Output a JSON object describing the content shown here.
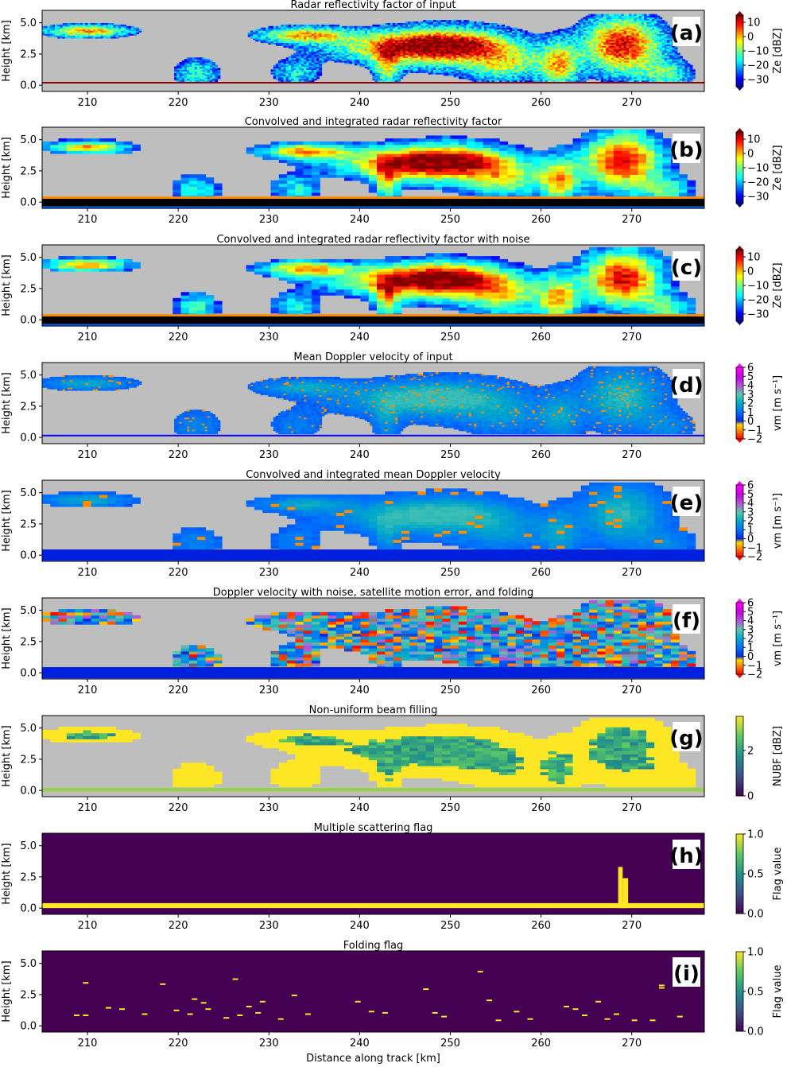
{
  "chart_data": [
    {
      "type": "heatmap",
      "panel": "(a)",
      "title": "Radar reflectivity factor of input",
      "ylabel": "Height [km]",
      "xlim": [
        205,
        278
      ],
      "ylim": [
        -0.5,
        6.0
      ],
      "xticks": [
        "210",
        "220",
        "230",
        "240",
        "250",
        "260",
        "270"
      ],
      "yticks": [
        "0.0",
        "2.5",
        "5.0"
      ],
      "colorbar": {
        "cmap": "jet",
        "label": "Ze [dBZ]",
        "min": -35,
        "max": 15,
        "ticks": [
          "10",
          "0",
          "−10",
          "−20",
          "−30"
        ],
        "tick_values": [
          10,
          0,
          -10,
          -20,
          -30
        ]
      }
    },
    {
      "type": "heatmap",
      "panel": "(b)",
      "title": "Convolved and integrated radar reflectivity factor",
      "ylabel": "Height [km]",
      "xlim": [
        205,
        278
      ],
      "ylim": [
        -0.5,
        6.0
      ],
      "xticks": [
        "210",
        "220",
        "230",
        "240",
        "250",
        "260",
        "270"
      ],
      "yticks": [
        "0.0",
        "2.5",
        "5.0"
      ],
      "colorbar": {
        "cmap": "jet",
        "label": "Ze [dBZ]",
        "min": -35,
        "max": 15,
        "ticks": [
          "10",
          "0",
          "−10",
          "−20",
          "−30"
        ],
        "tick_values": [
          10,
          0,
          -10,
          -20,
          -30
        ]
      }
    },
    {
      "type": "heatmap",
      "panel": "(c)",
      "title": "Convolved and integrated radar reflectivity factor with noise",
      "ylabel": "Height [km]",
      "xlim": [
        205,
        278
      ],
      "ylim": [
        -0.5,
        6.0
      ],
      "xticks": [
        "210",
        "220",
        "230",
        "240",
        "250",
        "260",
        "270"
      ],
      "yticks": [
        "0.0",
        "2.5",
        "5.0"
      ],
      "colorbar": {
        "cmap": "jet",
        "label": "Ze [dBZ]",
        "min": -35,
        "max": 15,
        "ticks": [
          "10",
          "0",
          "−10",
          "−20",
          "−30"
        ],
        "tick_values": [
          10,
          0,
          -10,
          -20,
          -30
        ]
      }
    },
    {
      "type": "heatmap",
      "panel": "(d)",
      "title": "Mean Doppler velocity of input",
      "ylabel": "Height [km]",
      "xlim": [
        205,
        278
      ],
      "ylim": [
        -0.5,
        6.0
      ],
      "xticks": [
        "210",
        "220",
        "230",
        "240",
        "250",
        "260",
        "270"
      ],
      "yticks": [
        "0.0",
        "2.5",
        "5.0"
      ],
      "colorbar": {
        "cmap": "velocity",
        "label": "vm [m s⁻¹]",
        "min": -2,
        "max": 6,
        "ticks": [
          "6",
          "5",
          "4",
          "3",
          "2",
          "1",
          "0",
          "−1",
          "−2"
        ],
        "tick_values": [
          6,
          5,
          4,
          3,
          2,
          1,
          0,
          -1,
          -2
        ]
      }
    },
    {
      "type": "heatmap",
      "panel": "(e)",
      "title": "Convolved and integrated mean Doppler velocity",
      "ylabel": "Height [km]",
      "xlim": [
        205,
        278
      ],
      "ylim": [
        -0.5,
        6.0
      ],
      "xticks": [
        "210",
        "220",
        "230",
        "240",
        "250",
        "260",
        "270"
      ],
      "yticks": [
        "0.0",
        "2.5",
        "5.0"
      ],
      "colorbar": {
        "cmap": "velocity",
        "label": "vm [m s⁻¹]",
        "min": -2,
        "max": 6,
        "ticks": [
          "6",
          "5",
          "4",
          "3",
          "2",
          "1",
          "0",
          "−1",
          "−2"
        ],
        "tick_values": [
          6,
          5,
          4,
          3,
          2,
          1,
          0,
          -1,
          -2
        ]
      }
    },
    {
      "type": "heatmap",
      "panel": "(f)",
      "title": "Doppler velocity with noise, satellite motion error, and folding",
      "ylabel": "Height [km]",
      "xlim": [
        205,
        278
      ],
      "ylim": [
        -0.5,
        6.0
      ],
      "xticks": [
        "210",
        "220",
        "230",
        "240",
        "250",
        "260",
        "270"
      ],
      "yticks": [
        "0.0",
        "2.5",
        "5.0"
      ],
      "colorbar": {
        "cmap": "velocity",
        "label": "vm [m s⁻¹]",
        "min": -2,
        "max": 6,
        "ticks": [
          "6",
          "5",
          "4",
          "3",
          "2",
          "1",
          "0",
          "−1",
          "−2"
        ],
        "tick_values": [
          6,
          5,
          4,
          3,
          2,
          1,
          0,
          -1,
          -2
        ]
      }
    },
    {
      "type": "heatmap",
      "panel": "(g)",
      "title": "Non-uniform beam filling",
      "ylabel": "Height [km]",
      "xlim": [
        205,
        278
      ],
      "ylim": [
        -0.5,
        6.0
      ],
      "xticks": [
        "210",
        "220",
        "230",
        "240",
        "250",
        "260",
        "270"
      ],
      "yticks": [
        "0.0",
        "2.5",
        "5.0"
      ],
      "colorbar": {
        "cmap": "viridis",
        "label": "NUBF [dBZ]",
        "min": 0,
        "max": 3.5,
        "ticks": [
          "2",
          "0"
        ],
        "tick_values": [
          2,
          0
        ]
      }
    },
    {
      "type": "heatmap",
      "panel": "(h)",
      "title": "Multiple scattering flag",
      "ylabel": "Height [km]",
      "xlim": [
        205,
        278
      ],
      "ylim": [
        -0.5,
        6.0
      ],
      "xticks": [
        "210",
        "220",
        "230",
        "240",
        "250",
        "260",
        "270"
      ],
      "yticks": [
        "0.0",
        "2.5",
        "5.0"
      ],
      "colorbar": {
        "cmap": "viridis",
        "label": "Flag value",
        "min": 0,
        "max": 1,
        "ticks": [
          "1.0",
          "0.5",
          "0.0"
        ],
        "tick_values": [
          1,
          0.5,
          0
        ]
      }
    },
    {
      "type": "heatmap",
      "panel": "(i)",
      "title": "Folding flag",
      "ylabel": "Height [km]",
      "xlabel": "Distance along track [km]",
      "xlim": [
        205,
        278
      ],
      "ylim": [
        -0.5,
        6.0
      ],
      "xticks": [
        "210",
        "220",
        "230",
        "240",
        "250",
        "260",
        "270"
      ],
      "yticks": [
        "0.0",
        "2.5",
        "5.0"
      ],
      "colorbar": {
        "cmap": "viridis",
        "label": "Flag value",
        "min": 0,
        "max": 1,
        "ticks": [
          "1.0",
          "0.5",
          "0.0"
        ],
        "tick_values": [
          1,
          0.5,
          0
        ]
      }
    }
  ],
  "colors": {
    "background_gray": "#bebebe",
    "flag_background": "#440154",
    "flag_on": "#fde725"
  }
}
